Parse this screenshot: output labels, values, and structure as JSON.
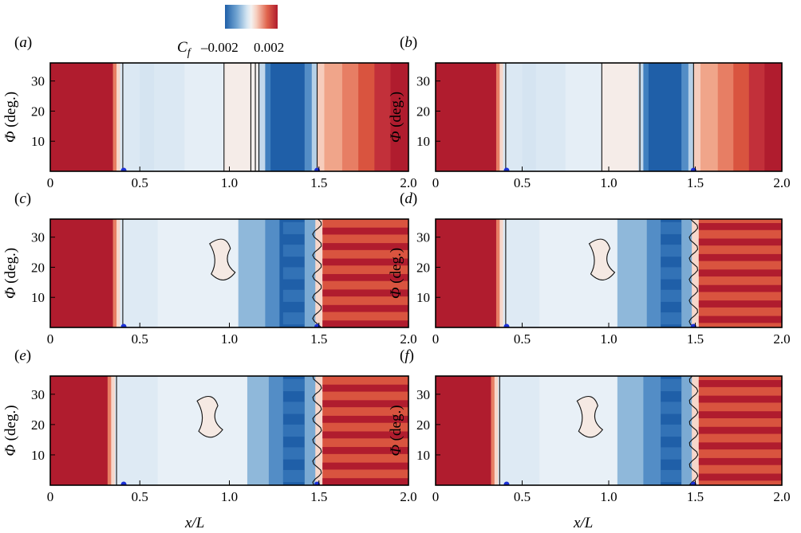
{
  "colorbar": {
    "label": "C",
    "label_sub": "f",
    "tick_labels": [
      "–0.002",
      "0.002"
    ],
    "range": [
      -0.002,
      0.002
    ],
    "colors": [
      "#1f5fa8",
      "#8fb8da",
      "#f4f1f0",
      "#f0a58a",
      "#b01c2e"
    ]
  },
  "xlabel": "x/L",
  "ylabel": "Φ (deg.)",
  "ylabel_symbol": "Φ",
  "ylabel_unit": "(deg.)",
  "chart_data": [
    {
      "id": "a",
      "label": "(a)",
      "type": "heatmap",
      "xlim": [
        0,
        2.0
      ],
      "ylim": [
        0,
        36
      ],
      "xticks": [
        "0",
        "0.5",
        "1.0",
        "1.5",
        "2.0"
      ],
      "yticks": [
        "10",
        "20",
        "30"
      ],
      "markers_x": [
        0.41,
        1.49
      ],
      "bands": [
        [
          0.0,
          0.35,
          0.0024
        ],
        [
          0.35,
          0.37,
          0.0012
        ],
        [
          0.37,
          0.39,
          0.0003
        ],
        [
          0.39,
          0.5,
          -0.0002
        ],
        [
          0.5,
          0.58,
          -0.00025
        ],
        [
          0.58,
          0.75,
          -0.0002
        ],
        [
          0.75,
          0.97,
          -0.00012
        ],
        [
          0.97,
          1.12,
          8e-05
        ],
        [
          1.12,
          1.16,
          2e-05
        ],
        [
          1.16,
          1.2,
          -0.0004
        ],
        [
          1.2,
          1.23,
          -0.0016
        ],
        [
          1.23,
          1.42,
          -0.0024
        ],
        [
          1.42,
          1.46,
          -0.0014
        ],
        [
          1.46,
          1.49,
          -0.0005
        ],
        [
          1.49,
          1.53,
          0.0004
        ],
        [
          1.53,
          1.63,
          0.0008
        ],
        [
          1.63,
          1.72,
          0.0012
        ],
        [
          1.72,
          1.81,
          0.0016
        ],
        [
          1.81,
          1.9,
          0.002
        ],
        [
          1.9,
          2.0,
          0.0024
        ]
      ],
      "contour_x": [
        0.405,
        0.97,
        1.12,
        1.145,
        1.165,
        1.49
      ]
    },
    {
      "id": "b",
      "label": "(b)",
      "type": "heatmap",
      "xlim": [
        0,
        2.0
      ],
      "ylim": [
        0,
        36
      ],
      "xticks": [
        "0",
        "0.5",
        "1.0",
        "1.5",
        "2.0"
      ],
      "yticks": [
        "10",
        "20",
        "30"
      ],
      "markers_x": [
        0.41,
        1.49
      ],
      "bands": [
        [
          0.0,
          0.35,
          0.0024
        ],
        [
          0.35,
          0.37,
          0.0012
        ],
        [
          0.37,
          0.39,
          0.0003
        ],
        [
          0.39,
          0.5,
          -0.0002
        ],
        [
          0.5,
          0.58,
          -0.00025
        ],
        [
          0.58,
          0.75,
          -0.0002
        ],
        [
          0.75,
          0.96,
          -0.00012
        ],
        [
          0.96,
          1.17,
          8e-05
        ],
        [
          1.17,
          1.2,
          -0.0004
        ],
        [
          1.2,
          1.23,
          -0.0016
        ],
        [
          1.23,
          1.42,
          -0.0024
        ],
        [
          1.42,
          1.46,
          -0.0014
        ],
        [
          1.46,
          1.49,
          -0.0005
        ],
        [
          1.49,
          1.53,
          0.0004
        ],
        [
          1.53,
          1.63,
          0.0008
        ],
        [
          1.63,
          1.72,
          0.0012
        ],
        [
          1.72,
          1.81,
          0.0016
        ],
        [
          1.81,
          1.9,
          0.002
        ],
        [
          1.9,
          2.0,
          0.0024
        ]
      ],
      "contour_x": [
        0.405,
        0.96,
        1.18,
        1.49
      ]
    },
    {
      "id": "c",
      "label": "(c)",
      "type": "heatmap",
      "xlim": [
        0,
        2.0
      ],
      "ylim": [
        0,
        36
      ],
      "xticks": [
        "0",
        "0.5",
        "1.0",
        "1.5",
        "2.0"
      ],
      "yticks": [
        "10",
        "20",
        "30"
      ],
      "markers_x": [
        0.41,
        1.49
      ],
      "bands": [
        [
          0.0,
          0.35,
          0.0024
        ],
        [
          0.35,
          0.37,
          0.0012
        ],
        [
          0.37,
          0.39,
          0.0003
        ],
        [
          0.39,
          0.6,
          -0.00018
        ],
        [
          0.6,
          1.05,
          -0.0001
        ],
        [
          1.05,
          1.2,
          -0.0008
        ],
        [
          1.2,
          1.28,
          -0.0014
        ],
        [
          1.28,
          1.42,
          -0.0024
        ],
        [
          1.42,
          1.48,
          -0.001
        ],
        [
          1.48,
          1.52,
          0.0003
        ],
        [
          1.52,
          2.0,
          0.0016
        ]
      ],
      "contour_x": [
        0.405,
        1.49
      ]
    },
    {
      "id": "d",
      "label": "(d)",
      "type": "heatmap",
      "xlim": [
        0,
        2.0
      ],
      "ylim": [
        0,
        36
      ],
      "xticks": [
        "0",
        "0.5",
        "1.0",
        "1.5",
        "2.0"
      ],
      "yticks": [
        "10",
        "20",
        "30"
      ],
      "markers_x": [
        0.41,
        1.49
      ],
      "bands": [
        [
          0.0,
          0.35,
          0.0024
        ],
        [
          0.35,
          0.37,
          0.0012
        ],
        [
          0.37,
          0.39,
          0.0003
        ],
        [
          0.39,
          0.6,
          -0.00018
        ],
        [
          0.6,
          1.05,
          -0.0001
        ],
        [
          1.05,
          1.22,
          -0.0008
        ],
        [
          1.22,
          1.3,
          -0.0014
        ],
        [
          1.3,
          1.42,
          -0.0024
        ],
        [
          1.42,
          1.48,
          -0.001
        ],
        [
          1.48,
          1.52,
          0.0003
        ],
        [
          1.52,
          2.0,
          0.0016
        ]
      ],
      "contour_x": [
        0.405,
        1.49
      ]
    },
    {
      "id": "e",
      "label": "(e)",
      "type": "heatmap",
      "xlim": [
        0,
        2.0
      ],
      "ylim": [
        0,
        36
      ],
      "xticks": [
        "0",
        "0.5",
        "1.0",
        "1.5",
        "2.0"
      ],
      "yticks": [
        "10",
        "20",
        "30"
      ],
      "markers_x": [
        0.41,
        1.49
      ],
      "bands": [
        [
          0.0,
          0.32,
          0.0024
        ],
        [
          0.32,
          0.34,
          0.0012
        ],
        [
          0.34,
          0.36,
          0.0003
        ],
        [
          0.36,
          0.6,
          -0.00018
        ],
        [
          0.6,
          1.1,
          -0.0001
        ],
        [
          1.1,
          1.22,
          -0.0008
        ],
        [
          1.22,
          1.3,
          -0.0014
        ],
        [
          1.3,
          1.42,
          -0.0024
        ],
        [
          1.42,
          1.48,
          -0.001
        ],
        [
          1.48,
          1.52,
          0.0003
        ],
        [
          1.52,
          2.0,
          0.0016
        ]
      ],
      "contour_x": [
        0.37,
        1.49
      ]
    },
    {
      "id": "f",
      "label": "(f)",
      "type": "heatmap",
      "xlim": [
        0,
        2.0
      ],
      "ylim": [
        0,
        36
      ],
      "xticks": [
        "0",
        "0.5",
        "1.0",
        "1.5",
        "2.0"
      ],
      "yticks": [
        "10",
        "20",
        "30"
      ],
      "markers_x": [
        0.41,
        1.49
      ],
      "bands": [
        [
          0.0,
          0.32,
          0.0024
        ],
        [
          0.32,
          0.34,
          0.0012
        ],
        [
          0.34,
          0.36,
          0.0003
        ],
        [
          0.36,
          0.6,
          -0.00018
        ],
        [
          0.6,
          1.05,
          -0.0001
        ],
        [
          1.05,
          1.2,
          -0.0008
        ],
        [
          1.2,
          1.3,
          -0.0014
        ],
        [
          1.3,
          1.42,
          -0.0024
        ],
        [
          1.42,
          1.48,
          -0.001
        ],
        [
          1.48,
          1.52,
          0.0003
        ],
        [
          1.52,
          2.0,
          0.0016
        ]
      ],
      "contour_x": [
        0.37,
        1.49
      ]
    }
  ]
}
